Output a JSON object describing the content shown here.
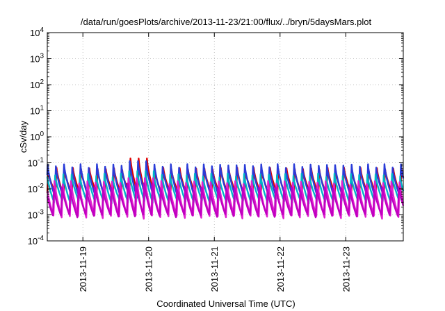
{
  "chart_data": {
    "type": "line",
    "title": "/data/run/goesPlots/archive/2013-11-23/21:00/flux/../bryn/5daysMars.plot",
    "xlabel": "Coordinated Universal Time (UTC)",
    "ylabel": "cSv/day",
    "x_range": [
      "2013-11-18T11:00",
      "2013-11-23T21:00"
    ],
    "x_ticks": [
      "2013-11-19",
      "2013-11-20",
      "2013-11-21",
      "2013-11-22",
      "2013-11-23"
    ],
    "y_scale": "log",
    "y_range": [
      0.0001,
      10000
    ],
    "y_ticks": [
      {
        "base": "10",
        "exp": "-4"
      },
      {
        "base": "10",
        "exp": "-3"
      },
      {
        "base": "10",
        "exp": "-2"
      },
      {
        "base": "10",
        "exp": "-1"
      },
      {
        "base": "10",
        "exp": "0"
      },
      {
        "base": "10",
        "exp": "1"
      },
      {
        "base": "10",
        "exp": "2"
      },
      {
        "base": "10",
        "exp": "3"
      },
      {
        "base": "10",
        "exp": "4"
      }
    ],
    "grid": true,
    "legend": "none",
    "oscillation_period_hours": 3,
    "series": [
      {
        "color": "#e00000",
        "peak": 0.06,
        "trough": 0.006,
        "peak_max": 0.16
      },
      {
        "color": "#2a3cd8",
        "peak": 0.08,
        "trough": 0.005,
        "peak_max": 0.12
      },
      {
        "color": "#00b4c8",
        "peak": 0.035,
        "trough": 0.003,
        "peak_max": 0.05
      },
      {
        "color": "#e020d0",
        "peak": 0.02,
        "trough": 0.0008,
        "peak_max": 0.03
      },
      {
        "color": "#c000c0",
        "peak": 0.012,
        "trough": 0.0009,
        "peak_max": 0.02
      }
    ]
  }
}
